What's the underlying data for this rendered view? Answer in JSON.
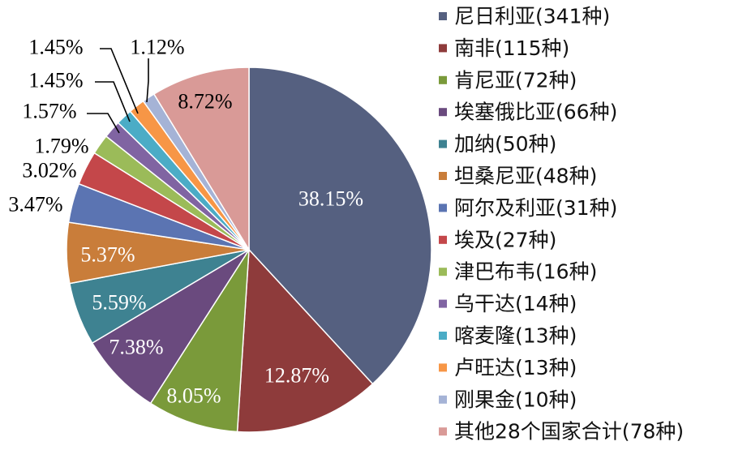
{
  "chart_data": {
    "type": "pie",
    "title": "",
    "legend_position": "right",
    "slices": [
      {
        "label": "尼日利亚(341种)",
        "value": 38.15,
        "pct_label": "38.15%",
        "color": "#556080"
      },
      {
        "label": "南非(115种)",
        "value": 12.87,
        "pct_label": "12.87%",
        "color": "#8E3B3B"
      },
      {
        "label": "肯尼亚(72种)",
        "value": 8.05,
        "pct_label": "8.05%",
        "color": "#7A9A3A"
      },
      {
        "label": "埃塞俄比亚(66种)",
        "value": 7.38,
        "pct_label": "7.38%",
        "color": "#6A4A7E"
      },
      {
        "label": "加纳(50种)",
        "value": 5.59,
        "pct_label": "5.59%",
        "color": "#3E8291"
      },
      {
        "label": "坦桑尼亚(48种)",
        "value": 5.37,
        "pct_label": "5.37%",
        "color": "#C97D3A"
      },
      {
        "label": "阿尔及利亚(31种)",
        "value": 3.47,
        "pct_label": "3.47%",
        "color": "#5B74B2"
      },
      {
        "label": "埃及(27种)",
        "value": 3.02,
        "pct_label": "3.02%",
        "color": "#C4474A"
      },
      {
        "label": "津巴布韦(16种)",
        "value": 1.79,
        "pct_label": "1.79%",
        "color": "#9BBB59"
      },
      {
        "label": "乌干达(14种)",
        "value": 1.57,
        "pct_label": "1.57%",
        "color": "#8064A2"
      },
      {
        "label": "喀麦隆(13种)",
        "value": 1.45,
        "pct_label": "1.45%",
        "color": "#4BACC6"
      },
      {
        "label": "卢旺达(13种)",
        "value": 1.45,
        "pct_label": "1.45%",
        "color": "#F79646"
      },
      {
        "label": "刚果金(10种)",
        "value": 1.12,
        "pct_label": "1.12%",
        "color": "#A5B3D6"
      },
      {
        "label": "其他28个国家合计(78种)",
        "value": 8.72,
        "pct_label": "8.72%",
        "color": "#D99A97"
      }
    ]
  }
}
